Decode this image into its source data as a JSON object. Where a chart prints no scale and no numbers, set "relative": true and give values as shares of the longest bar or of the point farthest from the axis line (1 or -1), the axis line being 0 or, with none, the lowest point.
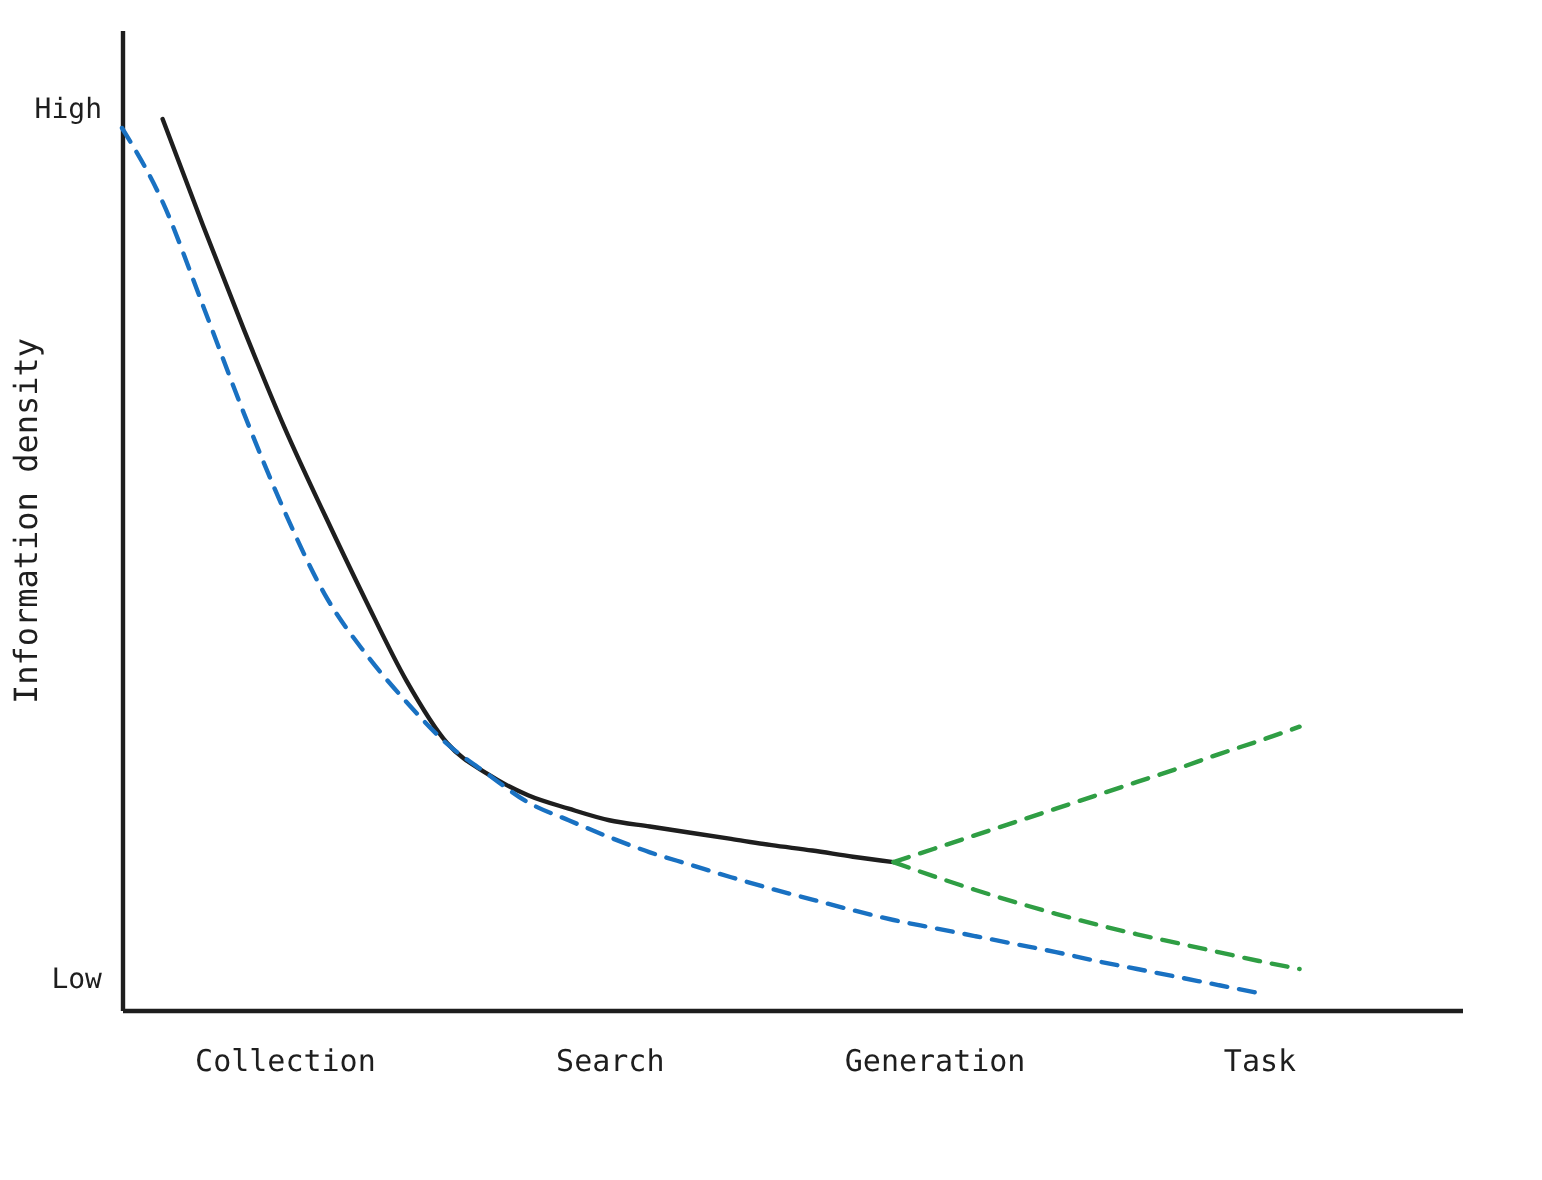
{
  "chart_data": {
    "type": "line",
    "relative": true,
    "ylabel": "Information density",
    "annotations": [
      "High",
      "Low"
    ],
    "categories": [
      null,
      null,
      null,
      null,
      "Collection",
      null,
      null,
      null,
      null,
      null,
      null,
      null,
      "Search",
      null,
      null,
      null,
      null,
      null,
      null,
      null,
      "Generation",
      null,
      null,
      null,
      null,
      null,
      null,
      null,
      "Task",
      null,
      null,
      null,
      null,
      null
    ],
    "grid": false,
    "series": [
      {
        "color": "#1e1e1e",
        "line_style": "solid",
        "values": [
          null,
          1.0,
          0.88,
          0.764,
          0.654,
          0.555,
          0.46,
          0.37,
          0.3,
          0.265,
          0.241,
          0.226,
          0.213,
          0.206,
          0.199,
          0.192,
          0.185,
          0.179,
          0.172,
          0.166,
          null,
          null,
          null,
          null,
          null,
          null,
          null,
          null,
          null,
          null,
          null,
          null,
          null,
          null
        ]
      },
      {
        "color": "#1971c2",
        "line_style": "dashed",
        "values": [
          0.99,
          0.907,
          0.79,
          0.67,
          0.56,
          0.466,
          0.4,
          0.346,
          0.299,
          0.265,
          0.233,
          0.213,
          0.194,
          0.177,
          0.163,
          0.149,
          0.136,
          0.124,
          0.112,
          0.101,
          0.092,
          0.083,
          0.074,
          0.065,
          0.055,
          0.046,
          0.037,
          0.028,
          0.019,
          null,
          null,
          null,
          null,
          null
        ]
      },
      {
        "color": "#2f9e44",
        "line_style": "dashed",
        "values": [
          null,
          null,
          null,
          null,
          null,
          null,
          null,
          null,
          null,
          null,
          null,
          null,
          null,
          null,
          null,
          null,
          null,
          null,
          null,
          0.166,
          0.181,
          0.196,
          0.211,
          0.226,
          0.241,
          0.256,
          0.271,
          0.287,
          0.302,
          0.318,
          null,
          null,
          null,
          null
        ]
      },
      {
        "color": "#2f9e44",
        "line_style": "dashed",
        "values": [
          null,
          null,
          null,
          null,
          null,
          null,
          null,
          null,
          null,
          null,
          null,
          null,
          null,
          null,
          null,
          null,
          null,
          null,
          null,
          0.166,
          0.15,
          0.135,
          0.121,
          0.108,
          0.096,
          0.085,
          0.075,
          0.065,
          0.055,
          0.046,
          null,
          null,
          null,
          null
        ]
      }
    ]
  }
}
